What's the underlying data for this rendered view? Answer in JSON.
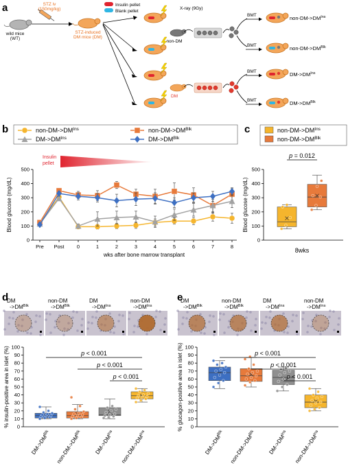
{
  "panel_letters": [
    "a",
    "b",
    "c",
    "d",
    "e"
  ],
  "colors": {
    "orange_mouse": "#f3a65a",
    "mouse_edge": "#c7731f",
    "pellet_red": "#e0242f",
    "pellet_blue": "#2fb6e4",
    "annot_orange": "#e8711f",
    "ins_yellow": "#f5b52d",
    "blk_orange": "#e77a3b",
    "dm_gray": "#a2a2a2",
    "dm_blue": "#3d6fc2",
    "red_cell": "#e23a2e",
    "gray_cell": "#777777"
  },
  "panel_a": {
    "wt_label_1": "wild mice",
    "wt_label_2": "(WT)",
    "stz_label_1": "STZ iv",
    "stz_label_2": "(150mg/kg)",
    "dm_label_1": "STZ-induced",
    "dm_label_2": "DM mice (DM)",
    "legend_insulin": "Insulin pellet",
    "legend_blank": "Blank pellet",
    "xray": "X-ray (9Gy)",
    "bmt": "BMT",
    "donor_nondm": "non-DM",
    "donor_dm": "DM",
    "groups": [
      {
        "main": "non-DM->DM",
        "sup": "Ins"
      },
      {
        "main": "non-DM->DM",
        "sup": "Blk"
      },
      {
        "main": "DM->DM",
        "sup": "Ins"
      },
      {
        "main": "DM->DM",
        "sup": "Blk"
      }
    ]
  },
  "chart_data": [
    {
      "type": "line",
      "panel": "b",
      "title": "",
      "ylabel": "Blood glucose (mg/dL)",
      "xlabel": "wks after bone marrow transplant",
      "categories": [
        "Pre",
        "Post",
        "0",
        "1",
        "2",
        "3",
        "4",
        "5",
        "6",
        "7",
        "8"
      ],
      "ylim": [
        0,
        500
      ],
      "yticks": [
        0,
        100,
        200,
        300,
        400,
        500
      ],
      "annotation": {
        "line1": "Insulin",
        "line2": "pellet"
      },
      "series": [
        {
          "name": "non-DM->DM",
          "sup": "Ins",
          "marker": "circle",
          "color": "#f5b52d",
          "values": [
            120,
            305,
            95,
            95,
            100,
            105,
            125,
            135,
            135,
            165,
            155
          ],
          "err": [
            8,
            12,
            15,
            18,
            20,
            22,
            25,
            22,
            25,
            30,
            35
          ]
        },
        {
          "name": "non-DM->DM",
          "sup": "Blk",
          "marker": "square",
          "color": "#e77a3b",
          "values": [
            125,
            350,
            320,
            315,
            390,
            325,
            310,
            345,
            320,
            245,
            325
          ],
          "err": [
            8,
            15,
            25,
            35,
            25,
            35,
            50,
            60,
            50,
            55,
            40
          ]
        },
        {
          "name": "DM->DM",
          "sup": "Ins",
          "marker": "triangle",
          "color": "#a2a2a2",
          "values": [
            115,
            295,
            100,
            150,
            160,
            165,
            130,
            180,
            215,
            245,
            275
          ],
          "err": [
            8,
            12,
            15,
            50,
            45,
            40,
            40,
            40,
            45,
            45,
            45
          ]
        },
        {
          "name": "DM->DM",
          "sup": "Blk",
          "marker": "diamond",
          "color": "#3d6fc2",
          "values": [
            110,
            330,
            310,
            300,
            280,
            290,
            295,
            265,
            300,
            310,
            345
          ],
          "err": [
            8,
            15,
            25,
            30,
            45,
            45,
            40,
            35,
            35,
            35,
            25
          ]
        }
      ]
    },
    {
      "type": "box",
      "panel": "c",
      "ylabel": "Blood glucose (mg/dL)",
      "xlabel": "8wks",
      "ylim": [
        0,
        500
      ],
      "yticks": [
        0,
        100,
        200,
        300,
        400,
        500
      ],
      "pvalue": "p = 0.012",
      "groups": [
        {
          "name": "non-DM->DM",
          "sup": "Ins",
          "color": "#f5b52d",
          "min": 80,
          "q1": 95,
          "median": 130,
          "q3": 235,
          "max": 250,
          "mean": 155,
          "points": [
            80,
            105,
            160,
            235,
            250
          ]
        },
        {
          "name": "non-DM->DM",
          "sup": "Blk",
          "color": "#e77a3b",
          "min": 215,
          "q1": 235,
          "median": 305,
          "q3": 395,
          "max": 460,
          "mean": 315,
          "points": [
            215,
            245,
            305,
            315,
            380,
            420
          ]
        }
      ]
    },
    {
      "type": "box",
      "panel": "d",
      "ylabel": "% insulin-positive area in islet (%)",
      "ylim": [
        0,
        100
      ],
      "yticks": [
        0,
        10,
        20,
        30,
        40,
        50,
        60,
        70,
        80,
        90,
        100
      ],
      "pvalues": [
        "p < 0.001",
        "p < 0.001",
        "p < 0.001"
      ],
      "image_labels": [
        {
          "l1": "DM",
          "l2": "->DM",
          "sup": "Blk"
        },
        {
          "l1": "non-DM",
          "l2": "->DM",
          "sup": "Blk"
        },
        {
          "l1": "DM",
          "l2": "->DM",
          "sup": "Ins"
        },
        {
          "l1": "non-DM",
          "l2": "->DM",
          "sup": "Ins"
        }
      ],
      "groups": [
        {
          "name": "DM->DM",
          "sup": "Blk",
          "color": "#3d6fc2",
          "min": 10,
          "q1": 11,
          "median": 14,
          "q3": 17,
          "max": 25,
          "mean": 14,
          "points": [
            10,
            11,
            12,
            13,
            14,
            14,
            15,
            16,
            17,
            18,
            20,
            25
          ]
        },
        {
          "name": "non-DM->DM",
          "sup": "Blk",
          "color": "#e77a3b",
          "min": 10,
          "q1": 11,
          "median": 14,
          "q3": 19,
          "max": 28,
          "mean": 16,
          "points": [
            10,
            11,
            12,
            13,
            14,
            15,
            16,
            17,
            19,
            22,
            26,
            37
          ]
        },
        {
          "name": "DM->DM",
          "sup": "Ins",
          "color": "#8f8f8f",
          "min": 10,
          "q1": 14,
          "median": 15,
          "q3": 24,
          "max": 35,
          "mean": 19,
          "points": [
            11,
            12,
            13,
            14,
            15,
            16,
            18,
            20,
            22,
            24,
            26
          ]
        },
        {
          "name": "non-DM->DM",
          "sup": "Ins",
          "color": "#f5b52d",
          "min": 31,
          "q1": 35,
          "median": 39,
          "q3": 44,
          "max": 48,
          "mean": 39,
          "points": [
            31,
            33,
            35,
            36,
            37,
            38,
            39,
            40,
            42,
            44,
            46,
            48
          ]
        }
      ]
    },
    {
      "type": "box",
      "panel": "e",
      "ylabel": "% glucagon-positive area in islet (%)",
      "ylim": [
        0,
        100
      ],
      "yticks": [
        0,
        10,
        20,
        30,
        40,
        50,
        60,
        70,
        80,
        90,
        100
      ],
      "pvalues": [
        "p < 0.001",
        "p < 0.001",
        "p < 0.001"
      ],
      "image_labels": [
        {
          "l1": "DM",
          "l2": "->DM",
          "sup": "Blk"
        },
        {
          "l1": "non-DM",
          "l2": "->DM",
          "sup": "Blk"
        },
        {
          "l1": "DM",
          "l2": "->DM",
          "sup": "Ins"
        },
        {
          "l1": "non-DM",
          "l2": "->DM",
          "sup": "Ins"
        }
      ],
      "groups": [
        {
          "name": "DM->DM",
          "sup": "Blk",
          "color": "#3d6fc2",
          "min": 48,
          "q1": 58,
          "median": 68,
          "q3": 75,
          "max": 83,
          "mean": 67,
          "points": [
            50,
            55,
            58,
            62,
            65,
            68,
            70,
            72,
            75,
            78,
            80,
            83
          ]
        },
        {
          "name": "non-DM->DM",
          "sup": "Blk",
          "color": "#e77a3b",
          "min": 50,
          "q1": 57,
          "median": 64,
          "q3": 73,
          "max": 87,
          "mean": 66,
          "points": [
            52,
            56,
            58,
            60,
            62,
            64,
            66,
            68,
            70,
            73,
            78,
            85,
            88
          ]
        },
        {
          "name": "DM->DM",
          "sup": "Ins",
          "color": "#8f8f8f",
          "min": 45,
          "q1": 53,
          "median": 62,
          "q3": 71,
          "max": 75,
          "mean": 60,
          "points": [
            45,
            50,
            53,
            57,
            60,
            62,
            65,
            68,
            70,
            72,
            74
          ]
        },
        {
          "name": "non-DM->DM",
          "sup": "Ins",
          "color": "#f5b52d",
          "min": 20,
          "q1": 24,
          "median": 31,
          "q3": 40,
          "max": 48,
          "mean": 32,
          "points": [
            20,
            22,
            24,
            27,
            30,
            31,
            33,
            36,
            38,
            40,
            44,
            48
          ]
        }
      ]
    }
  ]
}
